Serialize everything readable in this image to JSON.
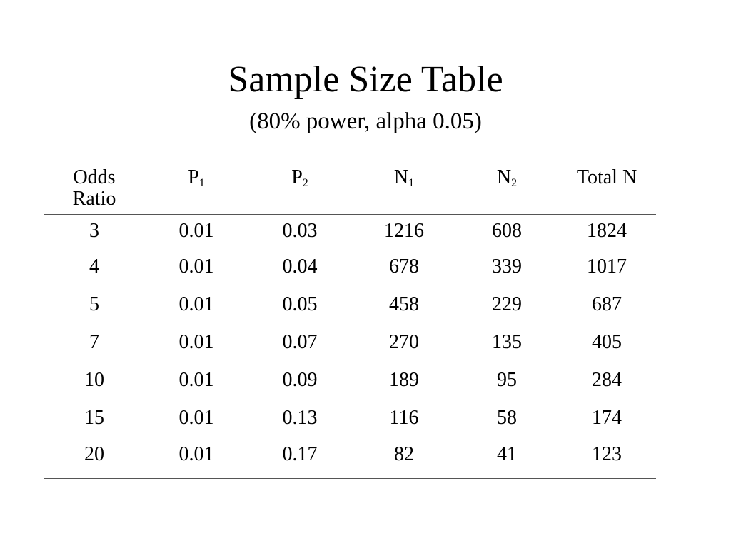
{
  "slide": {
    "title": "Sample Size Table",
    "subtitle": "(80% power, alpha 0.05)"
  },
  "table": {
    "headers": {
      "odds_ratio_line1": "Odds",
      "odds_ratio_line2": "Ratio",
      "p1_main": "P",
      "p1_sub": "1",
      "p2_main": "P",
      "p2_sub": "2",
      "n1_main": "N",
      "n1_sub": "1",
      "n2_main": "N",
      "n2_sub": "2",
      "total_n": "Total N"
    },
    "rows": [
      [
        "3",
        "0.01",
        "0.03",
        "1216",
        "608",
        "1824"
      ],
      [
        "4",
        "0.01",
        "0.04",
        "678",
        "339",
        "1017"
      ],
      [
        "5",
        "0.01",
        "0.05",
        "458",
        "229",
        "687"
      ],
      [
        "7",
        "0.01",
        "0.07",
        "270",
        "135",
        "405"
      ],
      [
        "10",
        "0.01",
        "0.09",
        "189",
        "95",
        "284"
      ],
      [
        "15",
        "0.01",
        "0.13",
        "116",
        "58",
        "174"
      ],
      [
        "20",
        "0.01",
        "0.17",
        "82",
        "41",
        "123"
      ]
    ]
  }
}
